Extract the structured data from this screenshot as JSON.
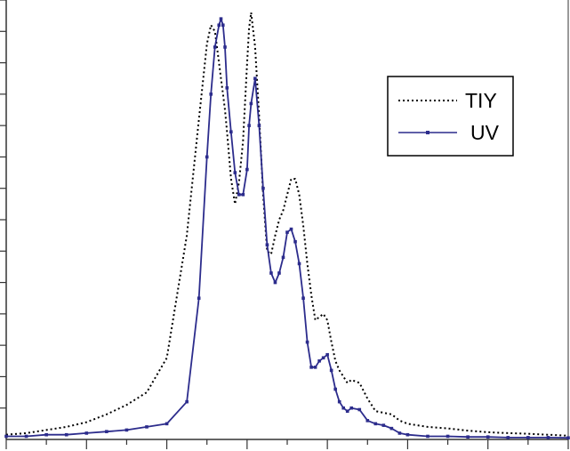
{
  "chart_data": {
    "type": "line",
    "title": "",
    "xlabel": "",
    "ylabel": "",
    "xlim": [
      0,
      140
    ],
    "ylim": [
      0,
      14
    ],
    "grid": false,
    "legend": "top-right",
    "x": [
      0,
      5,
      10,
      15,
      20,
      25,
      30,
      35,
      40,
      45,
      48,
      50,
      51,
      52,
      53,
      53.5,
      54,
      54.5,
      55,
      56,
      57,
      58,
      59,
      60,
      60.5,
      61,
      62,
      63,
      64,
      65,
      66,
      67,
      68,
      69,
      70,
      71,
      72,
      73,
      74,
      75,
      76,
      77,
      78,
      79,
      80,
      81,
      82,
      83,
      84,
      85,
      86,
      88,
      90,
      92,
      94,
      96,
      98,
      100,
      105,
      110,
      115,
      120,
      125,
      130,
      135,
      140
    ],
    "series": [
      {
        "name": "TIY",
        "color": "#000000",
        "dash": "dotted",
        "values": [
          0.15,
          0.2,
          0.3,
          0.4,
          0.55,
          0.8,
          1.1,
          1.5,
          2.6,
          6.5,
          10.2,
          12.6,
          13.2,
          13.0,
          12.0,
          11.5,
          11.0,
          10.5,
          9.8,
          8.3,
          7.5,
          8.2,
          9.5,
          12.0,
          13.1,
          13.6,
          12.5,
          10.3,
          7.8,
          6.0,
          5.9,
          6.5,
          7.0,
          7.3,
          7.8,
          8.3,
          8.3,
          7.8,
          6.8,
          5.6,
          4.6,
          3.8,
          3.9,
          4.0,
          3.8,
          3.1,
          2.5,
          2.2,
          2.0,
          1.8,
          1.9,
          1.8,
          1.3,
          0.9,
          0.85,
          0.8,
          0.6,
          0.5,
          0.4,
          0.35,
          0.28,
          0.23,
          0.2,
          0.18,
          0.15,
          0.12
        ]
      },
      {
        "name": "UV",
        "color": "#2c2c8c",
        "marker": "square",
        "values": [
          0.1,
          0.1,
          0.15,
          0.15,
          0.2,
          0.25,
          0.3,
          0.4,
          0.5,
          1.2,
          4.5,
          9.0,
          11.0,
          12.5,
          13.2,
          13.4,
          13.2,
          12.5,
          11.2,
          9.8,
          8.5,
          7.8,
          7.8,
          8.6,
          10.0,
          10.7,
          11.5,
          10.0,
          8.0,
          6.2,
          5.3,
          5.0,
          5.3,
          5.8,
          6.6,
          6.7,
          6.3,
          5.6,
          4.5,
          3.1,
          2.3,
          2.3,
          2.5,
          2.6,
          2.7,
          2.2,
          1.6,
          1.2,
          1.0,
          0.9,
          1.0,
          0.95,
          0.6,
          0.5,
          0.45,
          0.35,
          0.2,
          0.15,
          0.1,
          0.1,
          0.08,
          0.08,
          0.06,
          0.06,
          0.06,
          0.05
        ]
      }
    ]
  }
}
